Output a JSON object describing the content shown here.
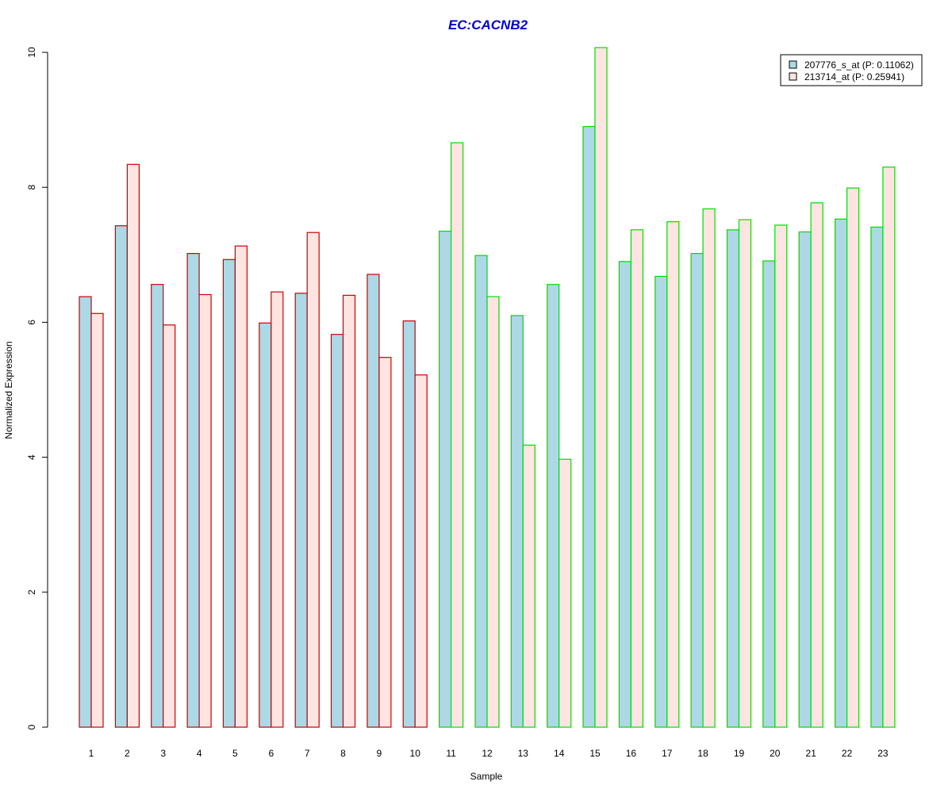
{
  "chart_data": {
    "type": "bar",
    "title": "EC:CACNB2",
    "xlabel": "Sample",
    "ylabel": "Normalized Expression",
    "ylim": [
      0,
      10
    ],
    "yticks": [
      0,
      2,
      4,
      6,
      8,
      10
    ],
    "grid": false,
    "legend_position": "top-right",
    "categories": [
      "1",
      "2",
      "3",
      "4",
      "5",
      "6",
      "7",
      "8",
      "9",
      "10",
      "11",
      "12",
      "13",
      "14",
      "15",
      "16",
      "17",
      "18",
      "19",
      "20",
      "21",
      "22",
      "23"
    ],
    "series": [
      {
        "name": "207776_s_at (P: 0.11062)",
        "values": [
          6.38,
          7.43,
          6.56,
          7.02,
          6.93,
          5.99,
          6.43,
          5.82,
          6.71,
          6.02,
          7.35,
          6.99,
          6.1,
          6.56,
          8.9,
          6.9,
          6.68,
          7.02,
          7.37,
          6.91,
          7.34,
          7.53,
          7.41
        ]
      },
      {
        "name": "213714_at (P: 0.25941)",
        "values": [
          6.13,
          8.34,
          5.96,
          6.41,
          7.13,
          6.45,
          7.33,
          6.4,
          5.48,
          5.22,
          8.66,
          6.38,
          4.18,
          3.97,
          10.07,
          7.37,
          7.49,
          7.68,
          7.52,
          7.44,
          7.77,
          7.99,
          8.3
        ]
      }
    ],
    "group_border_colors": [
      "#cc0000",
      "#cc0000",
      "#cc0000",
      "#cc0000",
      "#cc0000",
      "#cc0000",
      "#cc0000",
      "#cc0000",
      "#cc0000",
      "#cc0000",
      "#00dd00",
      "#00dd00",
      "#00dd00",
      "#00dd00",
      "#00dd00",
      "#00dd00",
      "#00dd00",
      "#00dd00",
      "#00dd00",
      "#00dd00",
      "#00dd00",
      "#00dd00",
      "#00dd00"
    ],
    "colors": {
      "title": "#0000cc",
      "series_fill": [
        "#add8e6",
        "#ffe4e1"
      ]
    }
  }
}
